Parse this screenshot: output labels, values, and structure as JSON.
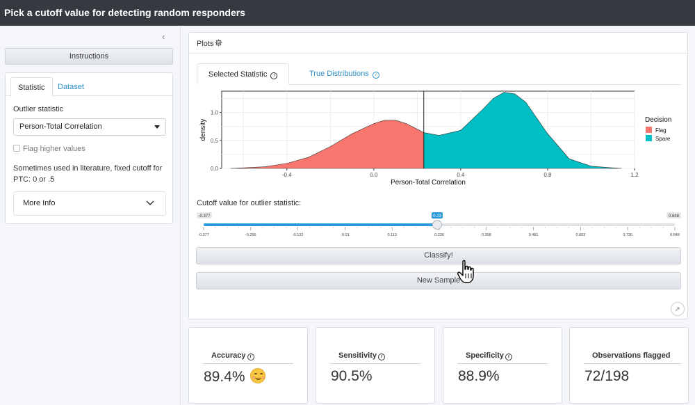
{
  "app": {
    "title": "Pick a cutoff value for detecting random responders"
  },
  "sidebar": {
    "instructions_label": "Instructions",
    "tabs": [
      {
        "label": "Statistic"
      },
      {
        "label": "Dataset"
      }
    ],
    "outlier_label": "Outlier statistic",
    "outlier_select_value": "Person-Total Correlation",
    "flag_higher_label": "Flag higher values",
    "literature_text": "Sometimes used in literature, fixed cutoff for PTC: 0 or .5",
    "more_info_label": "More Info"
  },
  "plots": {
    "header": "Plots",
    "tabs": [
      {
        "label": "Selected Statistic"
      },
      {
        "label": "True Distributions"
      }
    ],
    "cutoff_label": "Cutoff value for outlier statistic:"
  },
  "chart_data": {
    "type": "area",
    "xlabel": "Person-Total Correlation",
    "ylabel": "density",
    "xlim": [
      -0.7,
      1.2
    ],
    "ylim": [
      0,
      1.38
    ],
    "x_ticks": [
      -0.4,
      0.0,
      0.4,
      0.8,
      1.2
    ],
    "x_tick_labels": [
      "-0.4",
      "0.0",
      "0.4",
      "0.8",
      "1.2"
    ],
    "y_ticks": [
      0.0,
      0.5,
      1.0
    ],
    "y_tick_labels": [
      "0.0",
      "0.5",
      "1.0"
    ],
    "cutoff": 0.23,
    "legend_title": "Decision",
    "legend_position": "right",
    "grid": true,
    "series": [
      {
        "name": "Flag",
        "color": "#f8766d",
        "x": [
          -0.66,
          -0.6,
          -0.5,
          -0.4,
          -0.3,
          -0.2,
          -0.1,
          0.0,
          0.05,
          0.1,
          0.15,
          0.2,
          0.23
        ],
        "y": [
          0.0,
          0.01,
          0.03,
          0.09,
          0.2,
          0.39,
          0.62,
          0.8,
          0.86,
          0.86,
          0.8,
          0.7,
          0.64
        ]
      },
      {
        "name": "Spare",
        "color": "#00bfc4",
        "x": [
          0.23,
          0.3,
          0.4,
          0.5,
          0.55,
          0.6,
          0.65,
          0.7,
          0.8,
          0.9,
          1.0,
          1.1,
          1.14
        ],
        "y": [
          0.64,
          0.59,
          0.68,
          1.05,
          1.25,
          1.36,
          1.33,
          1.18,
          0.62,
          0.17,
          0.04,
          0.01,
          0.0
        ]
      }
    ]
  },
  "slider": {
    "min": -0.377,
    "max": 0.848,
    "value": 0.23,
    "min_label": "-0.377",
    "max_label": "0.848",
    "value_label": "0.23",
    "tick_labels": [
      "-0.377",
      "-0.255",
      "-0.132",
      "-0.01",
      "0.113",
      "0.236",
      "0.358",
      "0.481",
      "0.603",
      "0.726",
      "0.848"
    ],
    "fill_color": "#2c9ad8"
  },
  "buttons": {
    "classify": "Classify!",
    "new_sample": "New Sample"
  },
  "metrics": [
    {
      "title": "Accuracy",
      "value": "89.4%"
    },
    {
      "title": "Sensitivity",
      "value": "90.5%"
    },
    {
      "title": "Specificity",
      "value": "88.9%"
    },
    {
      "title": "Observations flagged",
      "value": "72/198"
    }
  ]
}
